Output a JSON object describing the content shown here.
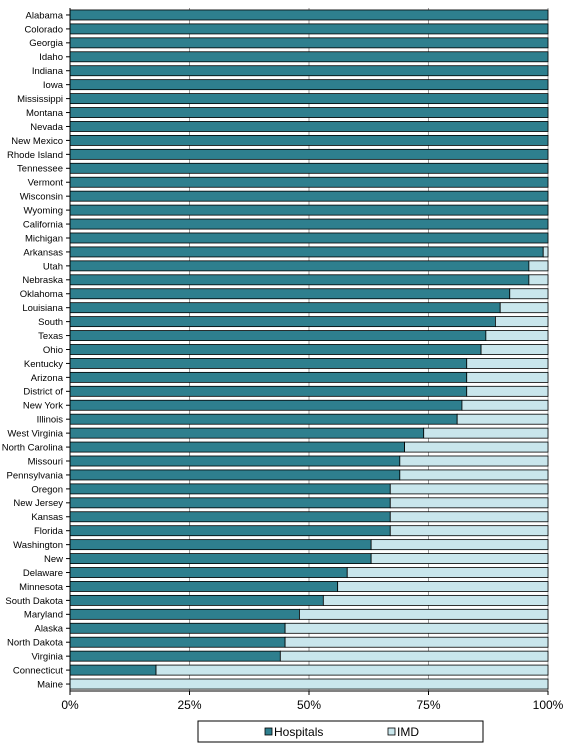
{
  "chart_data": {
    "type": "bar",
    "orientation": "horizontal",
    "stacked": "percent",
    "categories": [
      "Alabama",
      "Colorado",
      "Georgia",
      "Idaho",
      "Indiana",
      "Iowa",
      "Mississippi",
      "Montana",
      "Nevada",
      "New Mexico",
      "Rhode Island",
      "Tennessee",
      "Vermont",
      "Wisconsin",
      "Wyoming",
      "California",
      "Michigan",
      "Arkansas",
      "Utah",
      "Nebraska",
      "Oklahoma",
      "Louisiana",
      "South",
      "Texas",
      "Ohio",
      "Kentucky",
      "Arizona",
      "District of",
      "New York",
      "Illinois",
      "West Virginia",
      "North Carolina",
      "Missouri",
      "Pennsylvania",
      "Oregon",
      "New Jersey",
      "Kansas",
      "Florida",
      "Washington",
      "New",
      "Delaware",
      "Minnesota",
      "South Dakota",
      "Maryland",
      "Alaska",
      "North Dakota",
      "Virginia",
      "Connecticut",
      "Maine"
    ],
    "series": [
      {
        "name": "Hospitals",
        "color": "#2E7F8E",
        "values": [
          100,
          100,
          100,
          100,
          100,
          100,
          100,
          100,
          100,
          100,
          100,
          100,
          100,
          100,
          100,
          100,
          100,
          99,
          96,
          96,
          92,
          90,
          89,
          87,
          86,
          83,
          83,
          83,
          82,
          81,
          74,
          70,
          69,
          69,
          67,
          67,
          67,
          67,
          63,
          63,
          58,
          56,
          53,
          48,
          45,
          45,
          44,
          18,
          0
        ]
      },
      {
        "name": "IMD",
        "color": "#C9E6EC",
        "values": [
          0,
          0,
          0,
          0,
          0,
          0,
          0,
          0,
          0,
          0,
          0,
          0,
          0,
          0,
          0,
          0,
          0,
          1,
          4,
          4,
          8,
          10,
          11,
          13,
          14,
          17,
          17,
          17,
          18,
          19,
          26,
          30,
          31,
          31,
          33,
          33,
          33,
          33,
          37,
          37,
          42,
          44,
          47,
          52,
          55,
          55,
          56,
          82,
          100
        ]
      }
    ],
    "x_ticks": [
      "0%",
      "25%",
      "50%",
      "75%",
      "100%"
    ],
    "xlim": [
      0,
      100
    ],
    "grid": true,
    "legend_position": "bottom"
  }
}
